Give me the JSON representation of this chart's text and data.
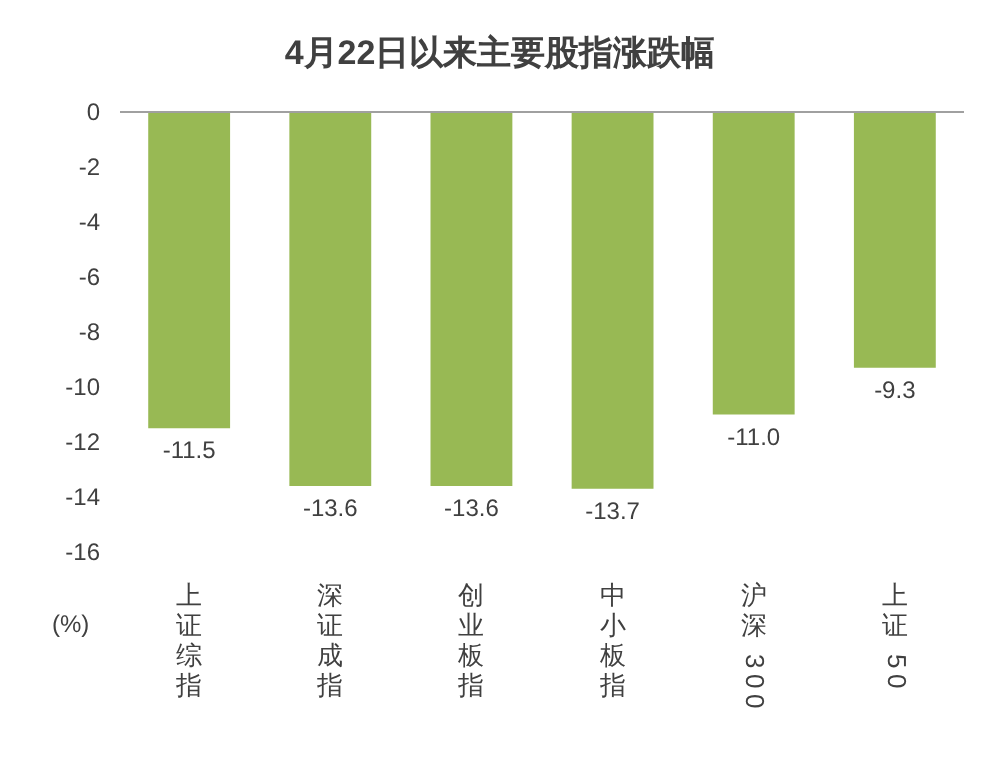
{
  "chart_data": {
    "type": "bar",
    "title": "4月22日以来主要股指涨跌幅",
    "ylabel": "(%)",
    "categories": [
      "上证综指",
      "深证成指",
      "创业板指",
      "中小板指",
      "沪深300",
      "上证50"
    ],
    "values": [
      -11.5,
      -13.6,
      -13.6,
      -13.7,
      -11.0,
      -9.3
    ],
    "value_labels": [
      "-11.5",
      "-13.6",
      "-13.6",
      "-13.7",
      "-11.0",
      "-9.3"
    ],
    "color": "#98b954",
    "ylim": [
      -16,
      0
    ],
    "yticks": [
      -16,
      -14,
      -12,
      -10,
      -8,
      -6,
      -4,
      -2,
      0
    ],
    "grid": false
  }
}
